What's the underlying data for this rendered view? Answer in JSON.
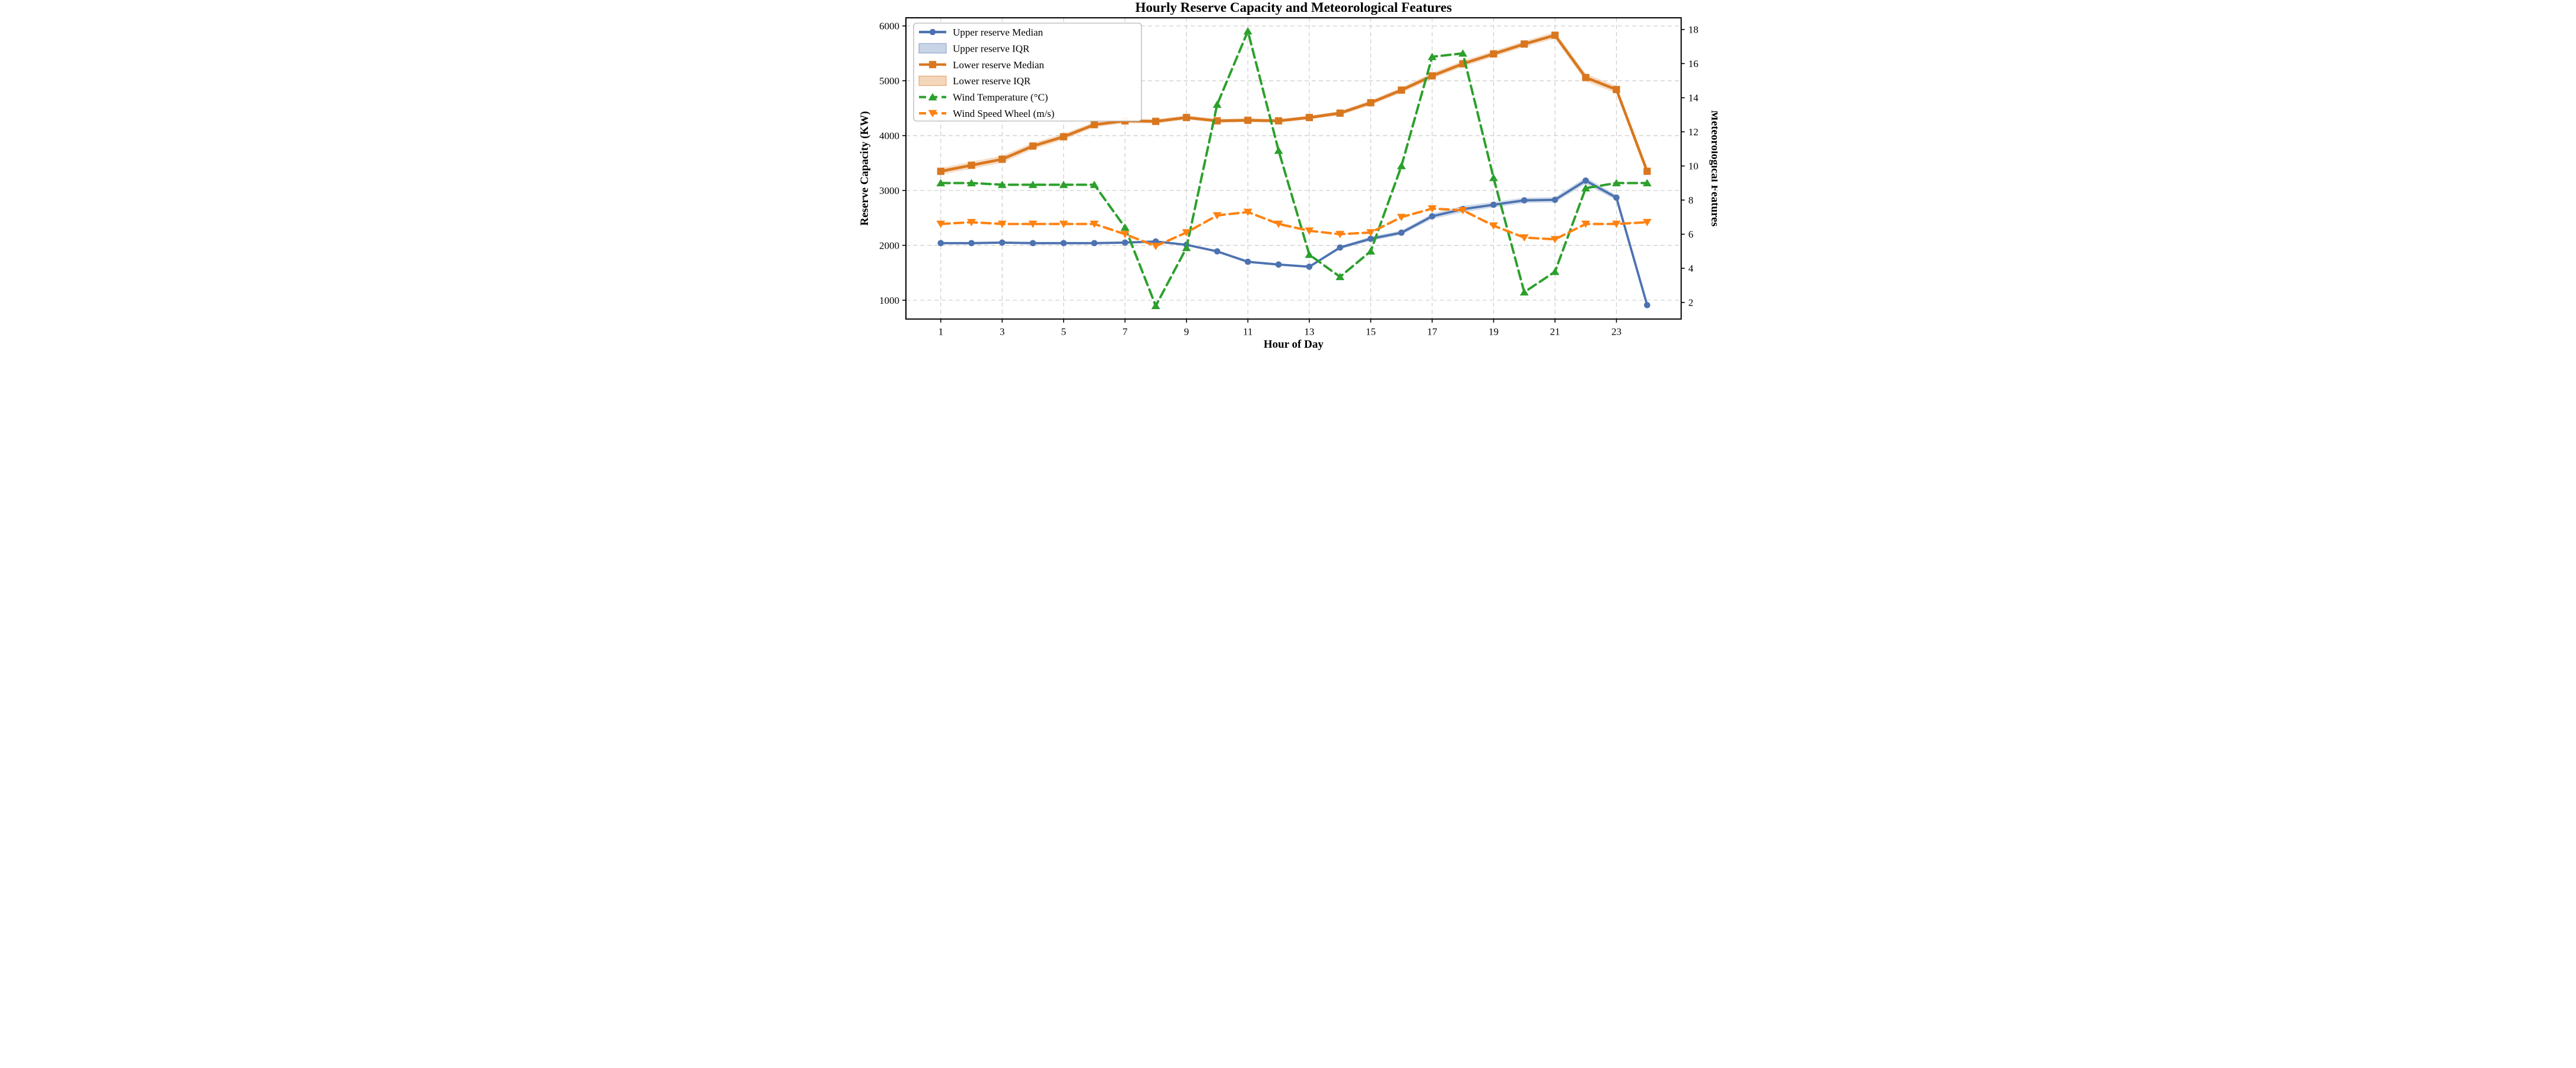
{
  "chart_data": {
    "type": "line",
    "title": "Hourly Reserve Capacity and Meteorological Features",
    "xlabel": "Hour of Day",
    "ylabel_left": "Reserve Capacity (KW)",
    "ylabel_right": "Meteorological Features",
    "x": [
      1,
      2,
      3,
      4,
      5,
      6,
      7,
      8,
      9,
      10,
      11,
      12,
      13,
      14,
      15,
      16,
      17,
      18,
      19,
      20,
      21,
      22,
      23,
      24
    ],
    "x_ticks": [
      1,
      3,
      5,
      7,
      9,
      11,
      13,
      15,
      17,
      19,
      21,
      23
    ],
    "yticks_left": [
      1000,
      2000,
      3000,
      4000,
      5000,
      6000
    ],
    "yticks_right": [
      2,
      4,
      6,
      8,
      10,
      12,
      14,
      16,
      18
    ],
    "ylim_left": [
      650,
      6150
    ],
    "ylim_right": [
      1.0,
      18.7
    ],
    "grid": "both-dashed",
    "legend_position": "upper-left",
    "colors": {
      "upper_median": "#4C72B0",
      "upper_iqr": "#AFC4E1",
      "lower_median": "#D9771F",
      "lower_iqr": "#F0CDA4",
      "wind_temperature": "#2CA02C",
      "wind_speed": "#FF8210"
    },
    "series": [
      {
        "name": "Upper reserve Median",
        "kind": "line",
        "axis": "left",
        "color": "#4C72B0",
        "marker": "circle",
        "dash": false,
        "values": [
          2040,
          2040,
          2050,
          2040,
          2040,
          2040,
          2050,
          2070,
          2010,
          1890,
          1700,
          1650,
          1610,
          1960,
          2120,
          2230,
          2530,
          2660,
          2740,
          2820,
          2830,
          3180,
          2870,
          910
        ]
      },
      {
        "name": "Upper reserve IQR",
        "kind": "band",
        "axis": "left",
        "color": "#4C72B0",
        "low": [
          2020,
          2020,
          2030,
          2020,
          2020,
          2020,
          2030,
          2050,
          1990,
          1870,
          1680,
          1630,
          1590,
          1930,
          2080,
          2190,
          2480,
          2600,
          2690,
          2770,
          2780,
          3120,
          2820,
          880
        ],
        "high": [
          2060,
          2060,
          2070,
          2060,
          2060,
          2060,
          2070,
          2090,
          2030,
          1910,
          1720,
          1670,
          1630,
          1990,
          2160,
          2270,
          2580,
          2720,
          2790,
          2870,
          2880,
          3240,
          2920,
          940
        ]
      },
      {
        "name": "Lower reserve Median",
        "kind": "line",
        "axis": "left",
        "color": "#D9771F",
        "marker": "square",
        "dash": false,
        "values": [
          3350,
          3460,
          3570,
          3810,
          3980,
          4200,
          4270,
          4260,
          4330,
          4270,
          4280,
          4270,
          4330,
          4410,
          4600,
          4830,
          5090,
          5310,
          5490,
          5670,
          5830,
          5060,
          4840,
          3350
        ]
      },
      {
        "name": "Lower reserve IQR",
        "kind": "band",
        "axis": "left",
        "color": "#D9771F",
        "low": [
          3290,
          3395,
          3505,
          3750,
          3925,
          4150,
          4225,
          4220,
          4290,
          4235,
          4245,
          4235,
          4295,
          4370,
          4555,
          4780,
          5035,
          5255,
          5435,
          5615,
          5770,
          4990,
          4775,
          3290
        ],
        "high": [
          3410,
          3525,
          3635,
          3870,
          4035,
          4250,
          4315,
          4300,
          4370,
          4305,
          4315,
          4305,
          4365,
          4450,
          4645,
          4880,
          5145,
          5365,
          5545,
          5725,
          5890,
          5130,
          4905,
          3410
        ]
      },
      {
        "name": "Wind Temperature (°C)",
        "kind": "line",
        "axis": "right",
        "color": "#2CA02C",
        "marker": "triangle-up",
        "dash": true,
        "values": [
          9.0,
          9.0,
          8.9,
          8.9,
          8.9,
          8.9,
          6.4,
          1.8,
          5.2,
          13.6,
          17.9,
          10.9,
          4.8,
          3.5,
          5.0,
          10.0,
          16.4,
          16.6,
          9.3,
          2.6,
          3.8,
          8.7,
          9.0,
          9.0
        ]
      },
      {
        "name": "Wind Speed Wheel (m/s)",
        "kind": "line",
        "axis": "right",
        "color": "#FF8210",
        "marker": "triangle-down",
        "dash": true,
        "values": [
          6.6,
          6.7,
          6.6,
          6.6,
          6.6,
          6.6,
          6.0,
          5.3,
          6.1,
          7.1,
          7.3,
          6.6,
          6.2,
          6.0,
          6.1,
          7.0,
          7.5,
          7.4,
          6.5,
          5.8,
          5.7,
          6.6,
          6.6,
          6.7
        ]
      }
    ],
    "legend": [
      "Upper reserve Median",
      "Upper reserve IQR",
      "Lower reserve Median",
      "Lower reserve IQR",
      "Wind Temperature (°C)",
      "Wind Speed Wheel (m/s)"
    ]
  }
}
